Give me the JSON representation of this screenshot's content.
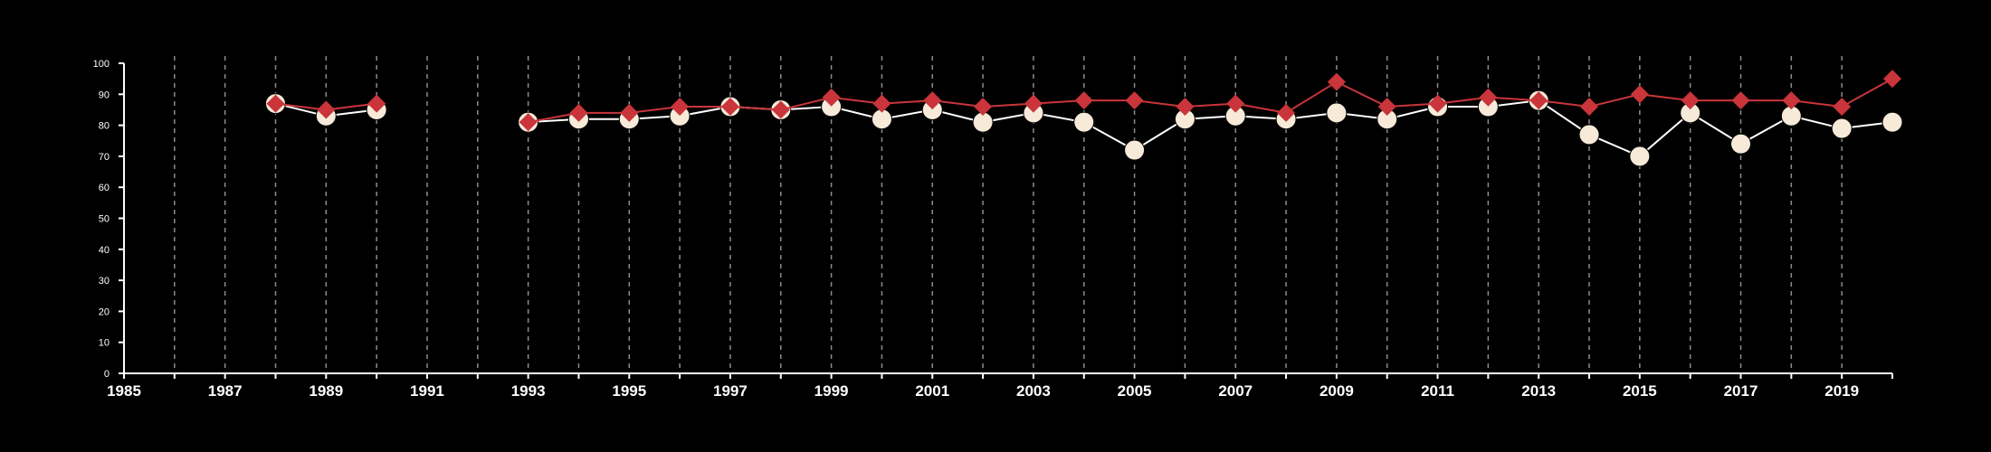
{
  "chart_data": {
    "type": "line",
    "title": "",
    "xlabel": "",
    "ylabel": "",
    "xlim": [
      1985,
      2020
    ],
    "ylim": [
      0,
      100
    ],
    "x_ticks": [
      1985,
      1987,
      1989,
      1991,
      1993,
      1995,
      1997,
      1999,
      2001,
      2003,
      2005,
      2007,
      2009,
      2011,
      2013,
      2015,
      2017,
      2019
    ],
    "y_ticks": [
      0,
      10,
      20,
      30,
      40,
      50,
      60,
      70,
      80,
      90,
      100
    ],
    "x_grid": "dashed vertical at every year",
    "y_grid": false,
    "colors": {
      "background": "#000000",
      "axis": "#ffffff",
      "grid": "#8c8c8c"
    },
    "series": [
      {
        "marker": "diamond",
        "color": "#c9353a",
        "line_color": "#c9353a",
        "x": [
          1988,
          1989,
          1990,
          1993,
          1994,
          1995,
          1996,
          1997,
          1998,
          1999,
          2000,
          2001,
          2002,
          2003,
          2004,
          2005,
          2006,
          2007,
          2008,
          2009,
          2010,
          2011,
          2012,
          2013,
          2014,
          2015,
          2016,
          2017,
          2018,
          2019,
          2020
        ],
        "values": [
          87,
          85,
          87,
          81,
          84,
          84,
          86,
          86,
          85,
          89,
          87,
          88,
          86,
          87,
          88,
          88,
          86,
          87,
          84,
          94,
          86,
          87,
          89,
          88,
          86,
          90,
          88,
          88,
          88,
          86,
          95
        ]
      },
      {
        "marker": "circle",
        "color": "#f7ead9",
        "line_color": "#ffffff",
        "x": [
          1988,
          1989,
          1990,
          1993,
          1994,
          1995,
          1996,
          1997,
          1998,
          1999,
          2000,
          2001,
          2002,
          2003,
          2004,
          2005,
          2006,
          2007,
          2008,
          2009,
          2010,
          2011,
          2012,
          2013,
          2014,
          2015,
          2016,
          2017,
          2018,
          2019,
          2020
        ],
        "values": [
          87,
          83,
          85,
          81,
          82,
          82,
          83,
          86,
          85,
          86,
          82,
          85,
          81,
          84,
          81,
          72,
          82,
          83,
          82,
          84,
          82,
          86,
          86,
          88,
          77,
          70,
          84,
          74,
          83,
          79,
          81
        ]
      }
    ]
  }
}
